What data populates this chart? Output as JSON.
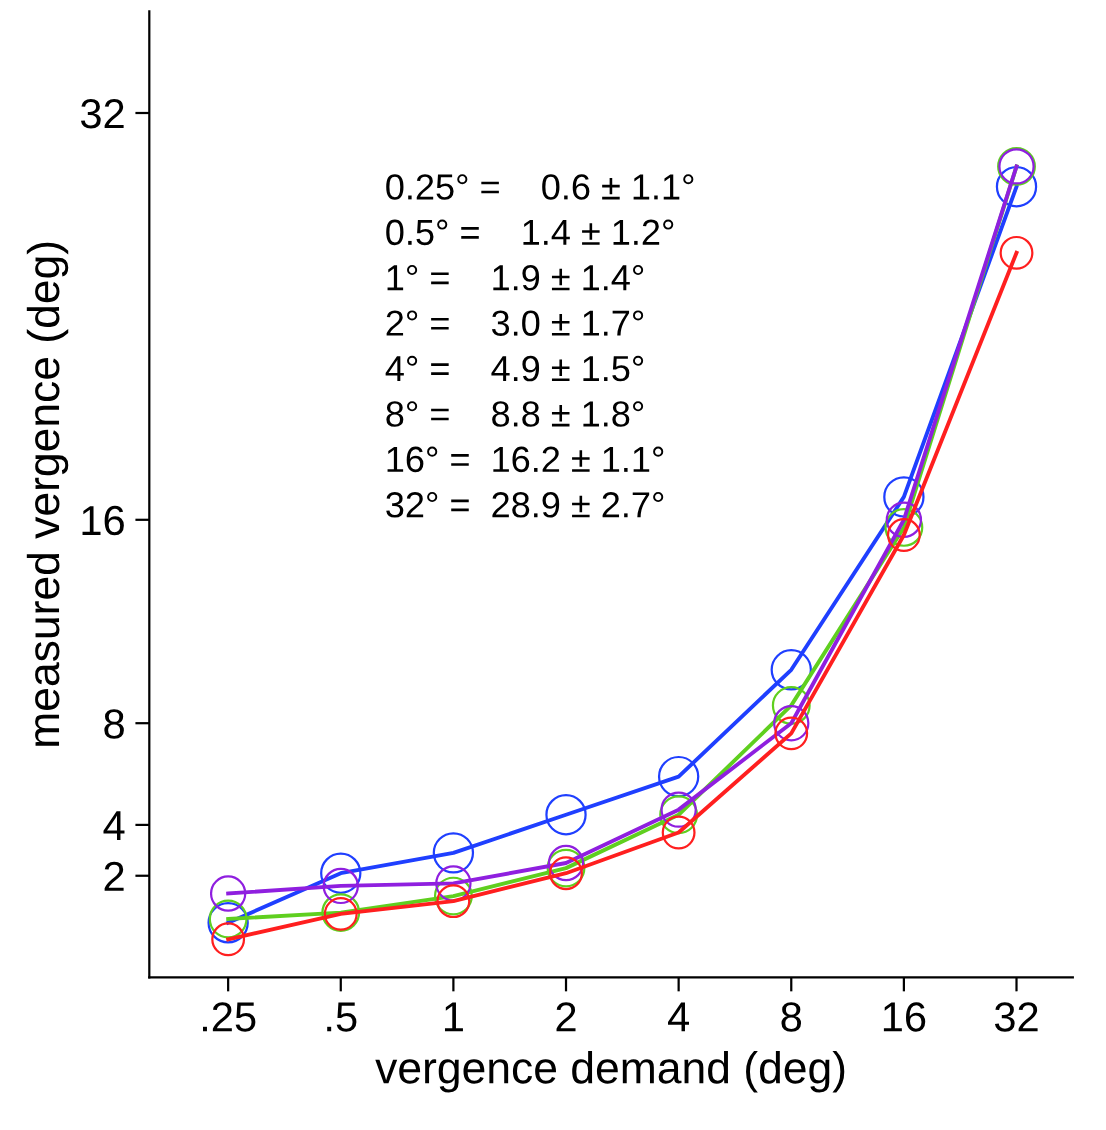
{
  "chart_data": {
    "type": "line",
    "xlabel": "vergence demand (deg)",
    "ylabel": "measured vergence (deg)",
    "categories": [
      ".25",
      ".5",
      "1",
      "2",
      "4",
      "8",
      "16",
      "32"
    ],
    "series": [
      {
        "color": "#1f3fff",
        "values": [
          0.15,
          2.1,
          2.9,
          4.4,
          5.9,
          10.1,
          16.9,
          29.1
        ]
      },
      {
        "color": "#5fcf1f",
        "values": [
          0.3,
          0.55,
          1.2,
          2.3,
          4.4,
          8.7,
          15.7,
          29.9
        ]
      },
      {
        "color": "#8f1fdf",
        "values": [
          1.3,
          1.6,
          1.7,
          2.5,
          4.6,
          8.0,
          16.0,
          29.9
        ]
      },
      {
        "color": "#ff1f1f",
        "values": [
          -0.5,
          0.5,
          1.0,
          2.1,
          3.7,
          7.6,
          15.4,
          26.5
        ]
      }
    ],
    "ylim": [
      -2,
      36
    ],
    "yticks": [
      2,
      4,
      8,
      16,
      32
    ],
    "marker": "circle",
    "line_style": "solid",
    "grid": false,
    "legend": false,
    "annotations": [
      "0.25° =    0.6 ± 1.1°",
      "0.5° =    1.4 ± 1.2°",
      "1° =    1.9 ± 1.4°",
      "2° =    3.0 ± 1.7°",
      "4° =    4.9 ± 1.5°",
      "8° =    8.8 ± 1.8°",
      "16° =  16.2 ± 1.1°",
      "32° =  28.9 ± 2.7°"
    ]
  }
}
